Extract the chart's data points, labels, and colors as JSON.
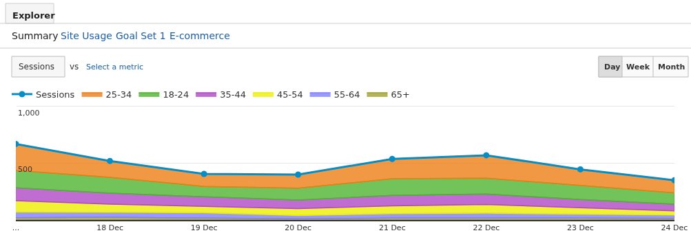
{
  "chart_data": {
    "type": "area",
    "stacked": true,
    "categories": [
      "...",
      "18 Dec",
      "19 Dec",
      "20 Dec",
      "21 Dec",
      "22 Dec",
      "23 Dec",
      "24 Dec"
    ],
    "series": [
      {
        "name": "65+",
        "color": "#a0a030",
        "values": [
          20,
          24,
          16,
          10,
          16,
          16,
          16,
          14
        ]
      },
      {
        "name": "55-64",
        "color": "#8080ff",
        "values": [
          50,
          44,
          48,
          30,
          40,
          44,
          36,
          30
        ]
      },
      {
        "name": "45-54",
        "color": "#edef00",
        "values": [
          100,
          72,
          56,
          60,
          68,
          76,
          56,
          36
        ]
      },
      {
        "name": "35-44",
        "color": "#af49c5",
        "values": [
          114,
          96,
          84,
          76,
          92,
          92,
          72,
          60
        ]
      },
      {
        "name": "18-24",
        "color": "#50b432",
        "values": [
          152,
          140,
          92,
          104,
          148,
          140,
          124,
          100
        ]
      },
      {
        "name": "25-34",
        "color": "#ed7e17",
        "values": [
          234,
          144,
          110,
          120,
          174,
          202,
          142,
          110
        ]
      },
      {
        "name": "Sessions",
        "type": "line",
        "color": "#058dc7",
        "marker": "circle",
        "values": [
          670,
          520,
          406,
          400,
          538,
          570,
          446,
          350
        ]
      }
    ],
    "ylim": [
      0,
      1030
    ],
    "yticks": [
      {
        "value": 500,
        "label": "500"
      },
      {
        "value": 1000,
        "label": "1,000"
      }
    ],
    "grid": "y",
    "legend": "top left",
    "annotations": [
      "Explorer",
      "Summary",
      "Site Usage",
      "Goal Set 1",
      "E-commerce",
      "Sessions",
      "vs",
      "Select a metric",
      "Day",
      "Week",
      "Month"
    ]
  }
}
